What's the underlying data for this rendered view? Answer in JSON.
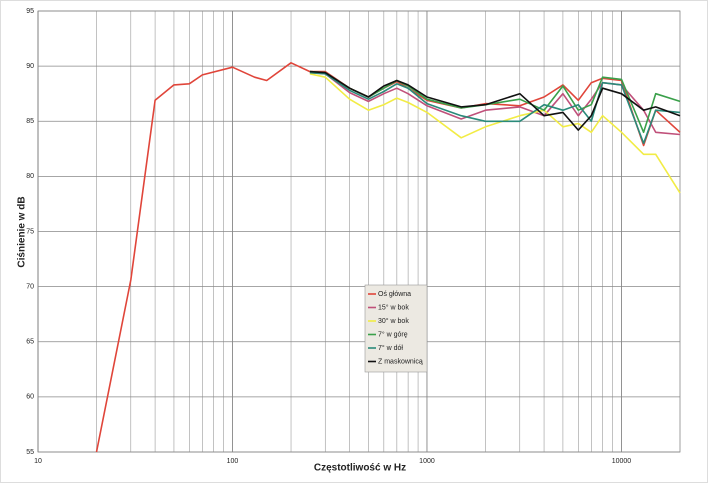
{
  "chart_data": {
    "type": "line",
    "x_label": "Częstotliwość w Hz",
    "y_label": "Ciśnienie w dB",
    "log_x": true,
    "grid": true,
    "xlim": [
      10,
      20000
    ],
    "xticks": [
      10,
      100,
      1000,
      10000
    ],
    "x_minor_grid": [
      20,
      30,
      40,
      50,
      60,
      70,
      80,
      90,
      200,
      300,
      400,
      500,
      600,
      700,
      800,
      900,
      2000,
      3000,
      4000,
      5000,
      6000,
      7000,
      8000,
      9000
    ],
    "ylim": [
      55,
      95
    ],
    "yticks": [
      55,
      60,
      65,
      70,
      75,
      80,
      85,
      90,
      95
    ],
    "legend": "center",
    "x": [
      20,
      30,
      40,
      50,
      60,
      70,
      100,
      130,
      150,
      200,
      250,
      300,
      400,
      500,
      600,
      700,
      800,
      1000,
      1500,
      2000,
      3000,
      4000,
      5000,
      6000,
      7000,
      8000,
      10000,
      13000,
      15000,
      20000
    ],
    "series": [
      {
        "name": "Oś główna",
        "color": "#e0453a",
        "values": [
          55,
          70.6,
          86.9,
          88.3,
          88.4,
          89.2,
          89.9,
          89.0,
          88.7,
          90.3,
          89.5,
          89.5,
          88.0,
          87.2,
          88.0,
          88.6,
          88.0,
          86.9,
          86.2,
          86.6,
          86.4,
          87.2,
          88.3,
          86.9,
          88.5,
          88.9,
          88.7,
          82.8,
          86.0,
          84.0
        ]
      },
      {
        "name": "15° w bok",
        "color": "#c0507a",
        "values": [
          null,
          null,
          null,
          null,
          null,
          null,
          null,
          null,
          null,
          null,
          89.4,
          89.3,
          87.6,
          86.8,
          87.5,
          88.0,
          87.5,
          86.4,
          85.2,
          86.0,
          86.3,
          85.5,
          87.5,
          85.5,
          87.0,
          88.5,
          88.3,
          86.0,
          84.0,
          83.8
        ]
      },
      {
        "name": "30° w bok",
        "color": "#f2ec45",
        "values": [
          null,
          null,
          null,
          null,
          null,
          null,
          null,
          null,
          null,
          null,
          89.3,
          89.0,
          87.0,
          86.0,
          86.5,
          87.1,
          86.7,
          85.8,
          83.5,
          84.5,
          85.5,
          86.0,
          84.5,
          84.8,
          84.0,
          85.5,
          84.0,
          82.0,
          82.0,
          78.5
        ]
      },
      {
        "name": "7° w górę",
        "color": "#3aa04a",
        "values": [
          null,
          null,
          null,
          null,
          null,
          null,
          null,
          null,
          null,
          null,
          89.5,
          89.4,
          88.0,
          87.2,
          88.0,
          88.7,
          88.2,
          87.0,
          86.2,
          86.5,
          87.0,
          86.0,
          88.2,
          86.0,
          86.5,
          89.0,
          88.8,
          84.0,
          87.5,
          86.8
        ]
      },
      {
        "name": "7° w dół",
        "color": "#2a8a7a",
        "values": [
          null,
          null,
          null,
          null,
          null,
          null,
          null,
          null,
          null,
          null,
          89.4,
          89.3,
          87.8,
          87.0,
          87.7,
          88.4,
          88.0,
          86.6,
          85.5,
          85.0,
          85.0,
          86.5,
          86.0,
          86.5,
          85.0,
          88.5,
          88.3,
          83.0,
          86.0,
          85.8
        ]
      },
      {
        "name": "Z maskownicą",
        "color": "#111111",
        "values": [
          null,
          null,
          null,
          null,
          null,
          null,
          null,
          null,
          null,
          null,
          89.5,
          89.4,
          88.0,
          87.2,
          88.2,
          88.7,
          88.3,
          87.2,
          86.3,
          86.5,
          87.5,
          85.5,
          85.8,
          84.2,
          85.5,
          88.0,
          87.5,
          86.0,
          86.3,
          85.5
        ]
      }
    ]
  }
}
